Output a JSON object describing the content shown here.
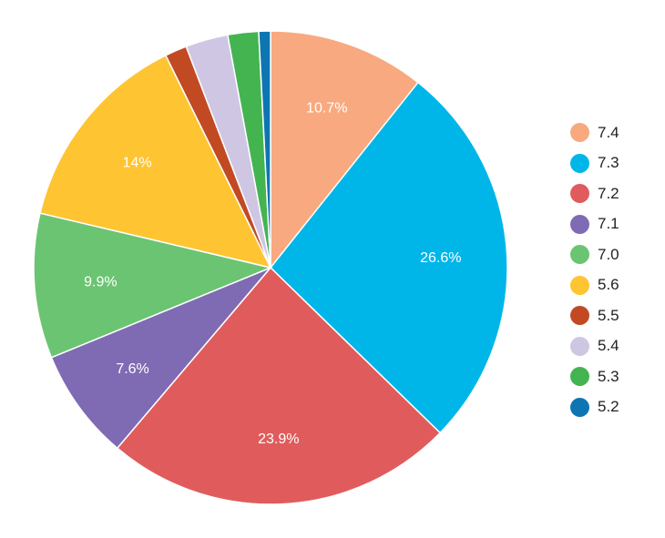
{
  "chart_data": {
    "type": "pie",
    "title": "",
    "categories": [
      "7.4",
      "7.3",
      "7.2",
      "7.1",
      "7.0",
      "5.6",
      "5.5",
      "5.4",
      "5.3",
      "5.2"
    ],
    "values": [
      10.7,
      26.6,
      23.9,
      7.6,
      9.9,
      14.0,
      1.5,
      2.9,
      2.1,
      0.8
    ],
    "labels": [
      "10.7%",
      "26.6%",
      "23.9%",
      "7.6%",
      "9.9%",
      "14%",
      "",
      "",
      "",
      ""
    ],
    "colors": [
      "#f8a97f",
      "#00b6e8",
      "#e05c5c",
      "#7f6bb4",
      "#6bc472",
      "#fec432",
      "#c24a23",
      "#cfc6e4",
      "#44b451",
      "#0d76b2"
    ],
    "legend_position": "right"
  },
  "legend": {
    "items": [
      {
        "label": "7.4",
        "color": "#f8a97f"
      },
      {
        "label": "7.3",
        "color": "#00b6e8"
      },
      {
        "label": "7.2",
        "color": "#e05c5c"
      },
      {
        "label": "7.1",
        "color": "#7f6bb4"
      },
      {
        "label": "7.0",
        "color": "#6bc472"
      },
      {
        "label": "5.6",
        "color": "#fec432"
      },
      {
        "label": "5.5",
        "color": "#c24a23"
      },
      {
        "label": "5.4",
        "color": "#cfc6e4"
      },
      {
        "label": "5.3",
        "color": "#44b451"
      },
      {
        "label": "5.2",
        "color": "#0d76b2"
      }
    ]
  }
}
